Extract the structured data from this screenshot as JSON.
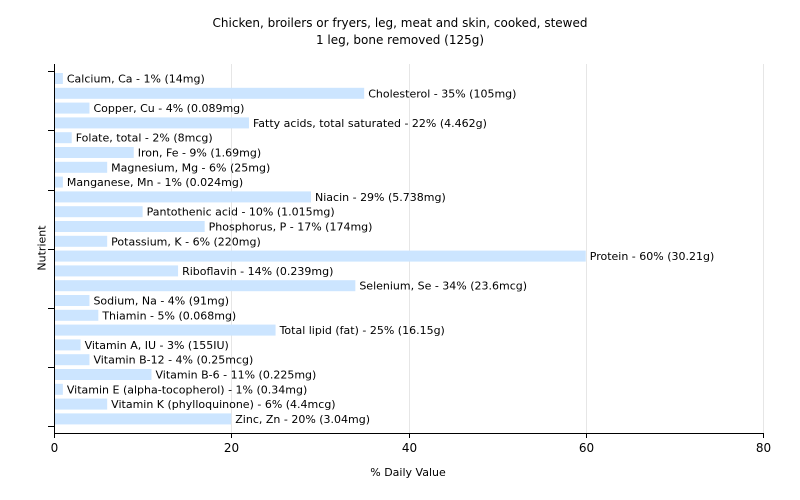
{
  "chart_data": {
    "type": "bar",
    "orientation": "horizontal",
    "title": "Chicken, broilers or fryers, leg, meat and skin, cooked, stewed",
    "subtitle": "1 leg, bone removed (125g)",
    "xlabel": "% Daily Value",
    "ylabel": "Nutrient",
    "xlim": [
      0,
      80
    ],
    "xticks": [
      "0",
      "20",
      "40",
      "60",
      "80"
    ],
    "grid": true,
    "bar_color": "#cce5ff",
    "categories": [
      "Calcium, Ca",
      "Cholesterol",
      "Copper, Cu",
      "Fatty acids, total saturated",
      "Folate, total",
      "Iron, Fe",
      "Magnesium, Mg",
      "Manganese, Mn",
      "Niacin",
      "Pantothenic acid",
      "Phosphorus, P",
      "Potassium, K",
      "Protein",
      "Riboflavin",
      "Selenium, Se",
      "Sodium, Na",
      "Thiamin",
      "Total lipid (fat)",
      "Vitamin A, IU",
      "Vitamin B-12",
      "Vitamin B-6",
      "Vitamin E (alpha-tocopherol)",
      "Vitamin K (phylloquinone)",
      "Zinc, Zn"
    ],
    "values": [
      1,
      35,
      4,
      22,
      2,
      9,
      6,
      1,
      29,
      10,
      17,
      6,
      60,
      14,
      34,
      4,
      5,
      25,
      3,
      4,
      11,
      1,
      6,
      20
    ],
    "labels": [
      "Calcium, Ca - 1% (14mg)",
      "Cholesterol - 35% (105mg)",
      "Copper, Cu - 4% (0.089mg)",
      "Fatty acids, total saturated - 22% (4.462g)",
      "Folate, total - 2% (8mcg)",
      "Iron, Fe - 9% (1.69mg)",
      "Magnesium, Mg - 6% (25mg)",
      "Manganese, Mn - 1% (0.024mg)",
      "Niacin - 29% (5.738mg)",
      "Pantothenic acid - 10% (1.015mg)",
      "Phosphorus, P - 17% (174mg)",
      "Potassium, K - 6% (220mg)",
      "Protein - 60% (30.21g)",
      "Riboflavin - 14% (0.239mg)",
      "Selenium, Se - 34% (23.6mcg)",
      "Sodium, Na - 4% (91mg)",
      "Thiamin - 5% (0.068mg)",
      "Total lipid (fat) - 25% (16.15g)",
      "Vitamin A, IU - 3% (155IU)",
      "Vitamin B-12 - 4% (0.25mcg)",
      "Vitamin B-6 - 11% (0.225mg)",
      "Vitamin E (alpha-tocopherol) - 1% (0.34mg)",
      "Vitamin K (phylloquinone) - 6% (4.4mcg)",
      "Zinc, Zn - 20% (3.04mg)"
    ]
  }
}
